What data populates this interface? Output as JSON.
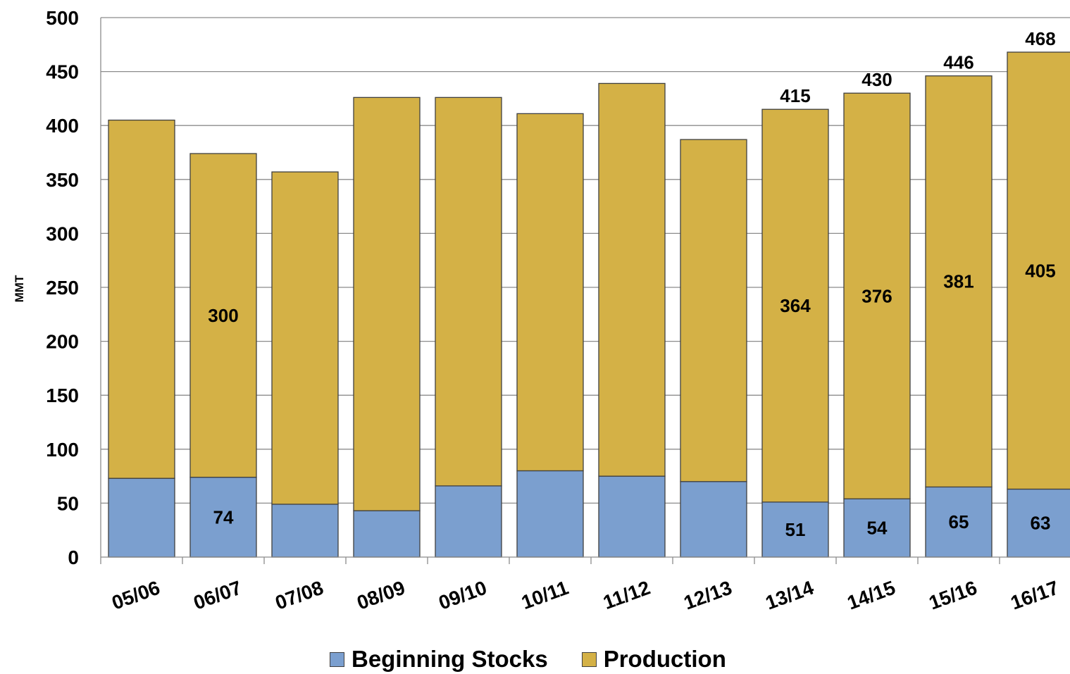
{
  "chart_data": {
    "type": "bar",
    "stacked": true,
    "title": "",
    "xlabel": "",
    "ylabel": "MMT",
    "ylim": [
      0,
      500
    ],
    "yticks": [
      0,
      50,
      100,
      150,
      200,
      250,
      300,
      350,
      400,
      450,
      500
    ],
    "categories": [
      "05/06",
      "06/07",
      "07/08",
      "08/09",
      "09/10",
      "10/11",
      "11/12",
      "12/13",
      "13/14",
      "14/15",
      "15/16",
      "16/17"
    ],
    "series": [
      {
        "name": "Beginning Stocks",
        "color": "#7b9fcf",
        "values": [
          73,
          74,
          49,
          43,
          66,
          80,
          75,
          70,
          51,
          54,
          65,
          63
        ],
        "labels": [
          null,
          "74",
          null,
          null,
          null,
          null,
          null,
          null,
          "51",
          "54",
          "65",
          "63"
        ]
      },
      {
        "name": "Production",
        "color": "#d4b146",
        "values": [
          332,
          300,
          308,
          383,
          360,
          331,
          364,
          317,
          364,
          376,
          381,
          405
        ],
        "labels": [
          null,
          "300",
          null,
          null,
          null,
          null,
          null,
          null,
          "364",
          "376",
          "381",
          "405"
        ]
      }
    ],
    "totals_labels": [
      null,
      null,
      null,
      null,
      null,
      null,
      null,
      null,
      "415",
      "430",
      "446",
      "468"
    ],
    "grid": true,
    "legend_position": "bottom"
  }
}
